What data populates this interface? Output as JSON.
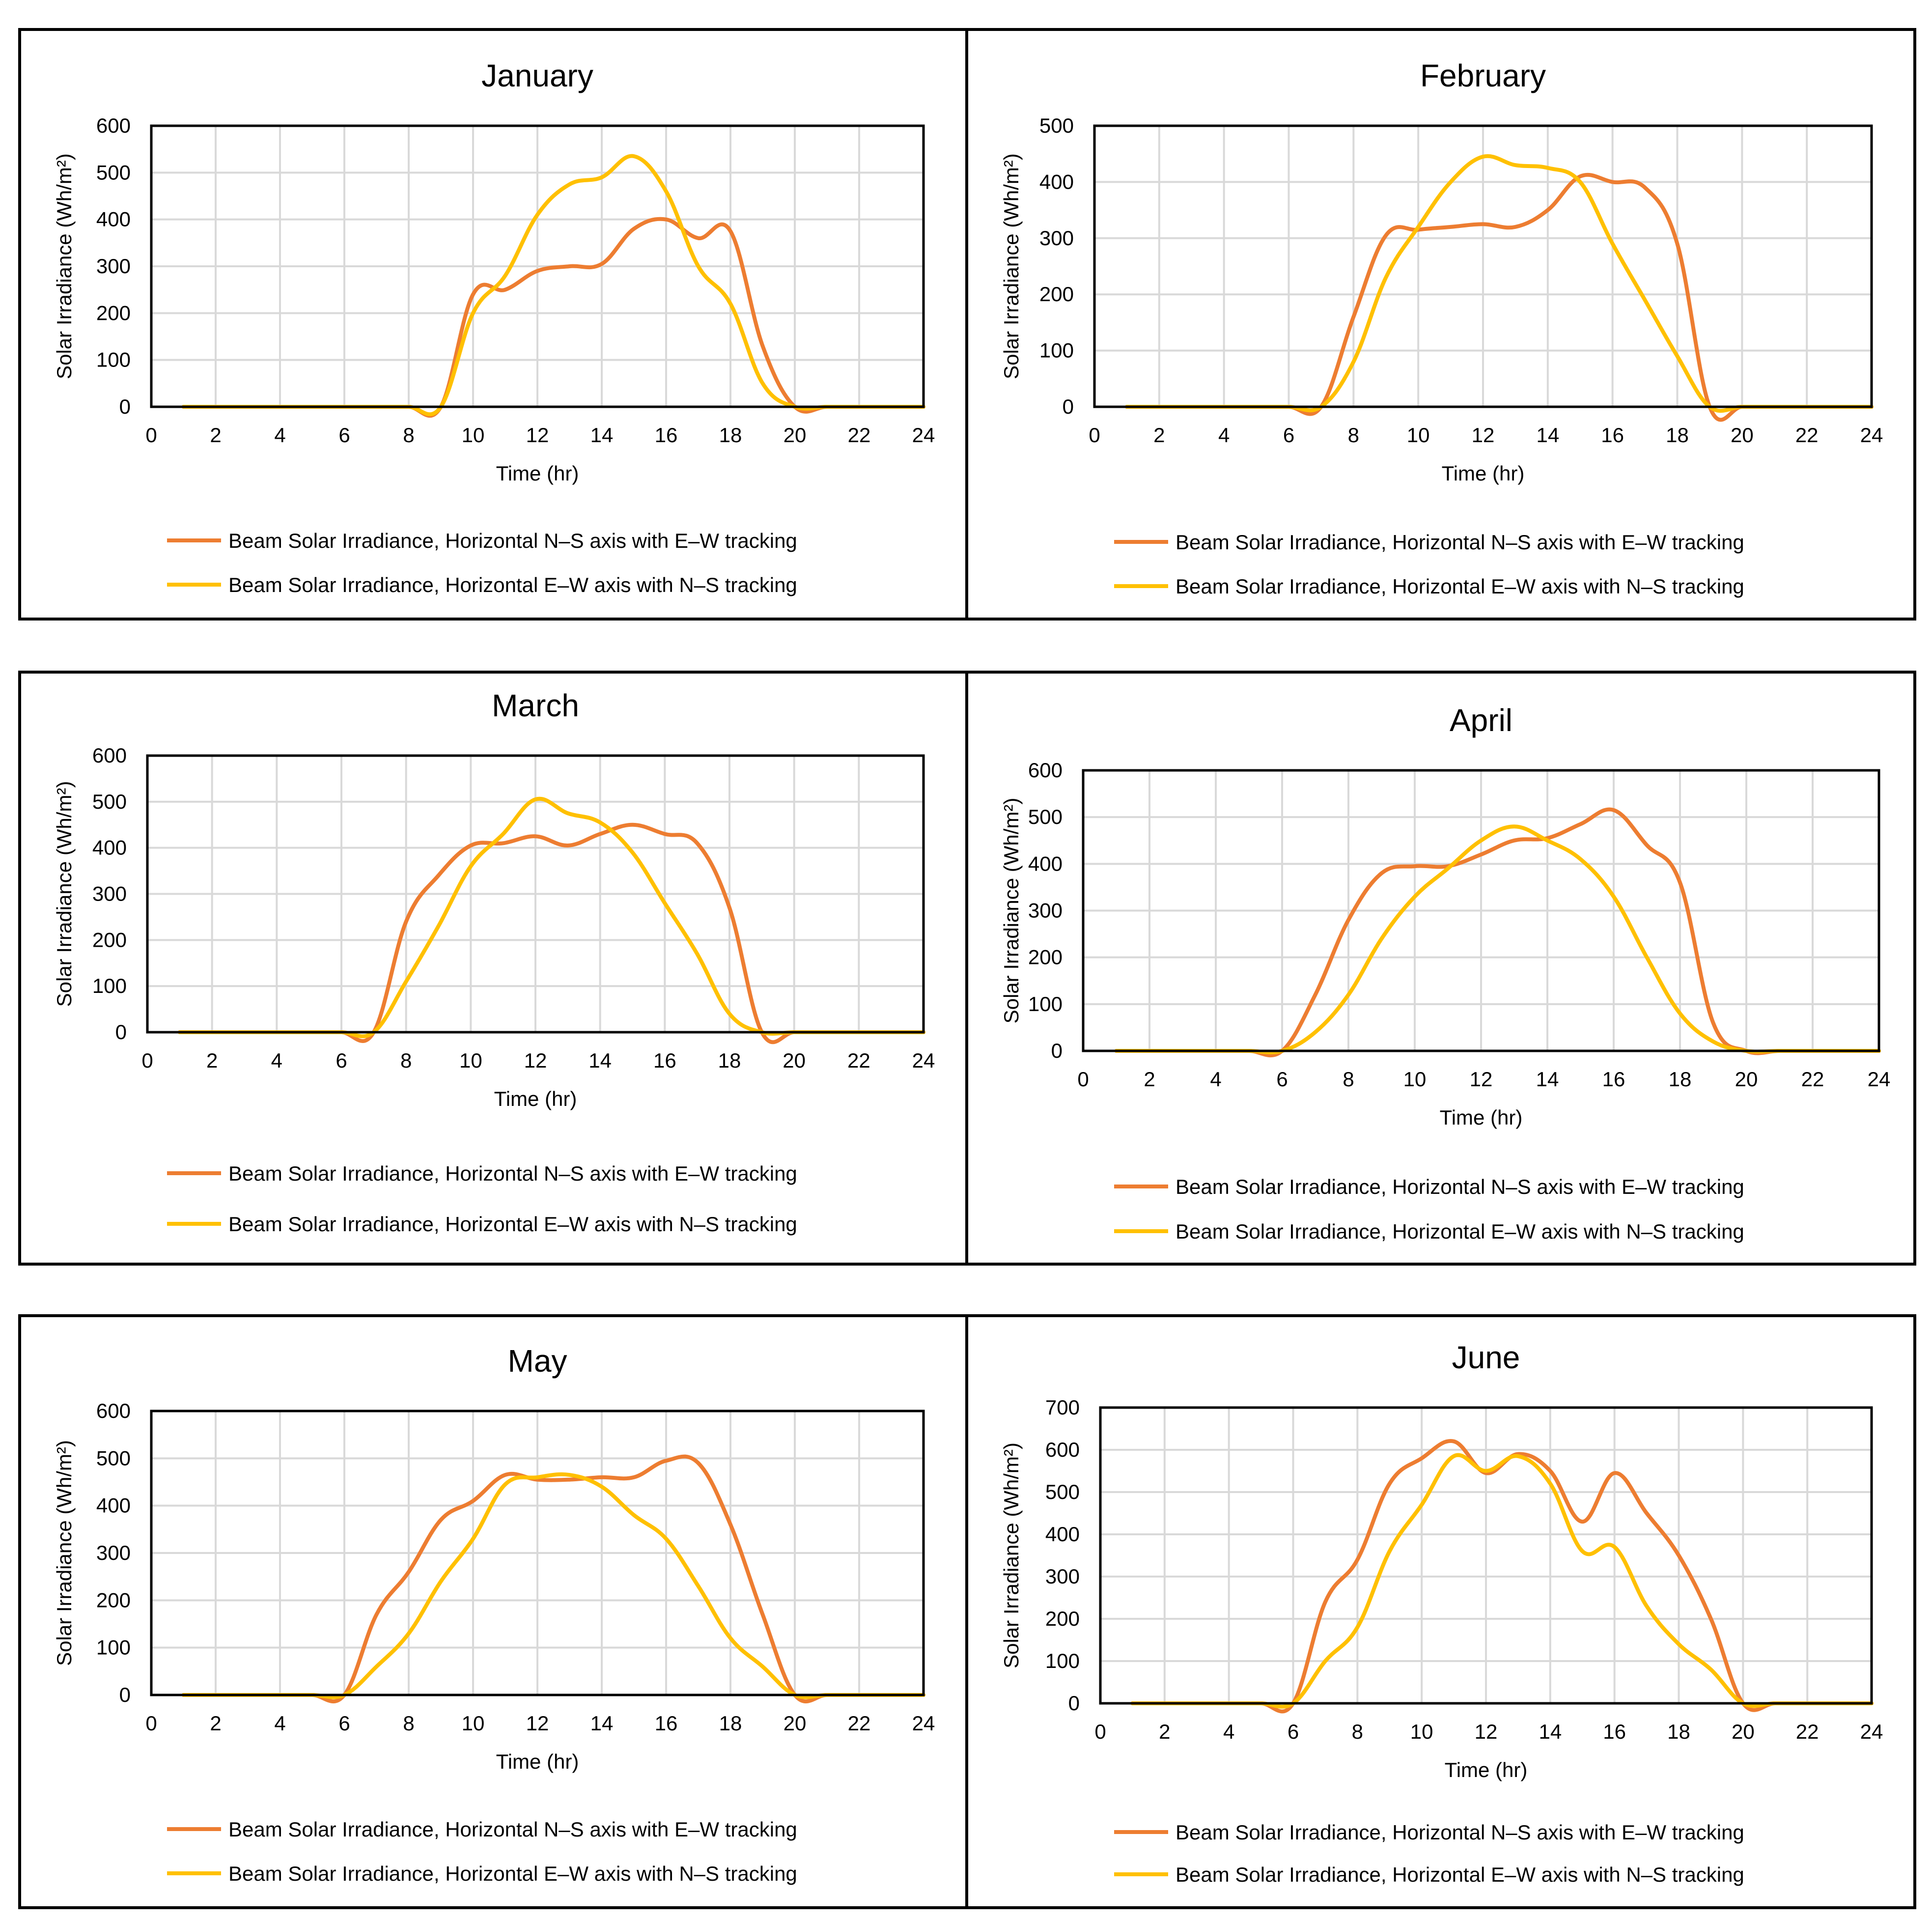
{
  "colors": {
    "ns_ew": "#ED7D31",
    "ew_ns": "#FFC000",
    "grid": "#D9D9D9",
    "frame": "#000000"
  },
  "chart_data": [
    {
      "type": "line",
      "title": "January",
      "xlabel": "Time (hr)",
      "ylabel": "Solar Irradiance (Wh/m²)",
      "xlim": [
        0,
        24
      ],
      "ylim": [
        0,
        600
      ],
      "xticks": [
        0,
        2,
        4,
        6,
        8,
        10,
        12,
        14,
        16,
        18,
        20,
        22,
        24
      ],
      "yticks": [
        0,
        100,
        200,
        300,
        400,
        500,
        600
      ],
      "series": [
        {
          "name": "Beam Solar Irradiance, Horizontal N–S axis with E–W tracking",
          "color_key": "ns_ew",
          "x": [
            1,
            2,
            3,
            4,
            5,
            6,
            7,
            8,
            9,
            10,
            11,
            12,
            13,
            14,
            15,
            16,
            17,
            18,
            19,
            20,
            21,
            22,
            23,
            24
          ],
          "y": [
            0,
            0,
            0,
            0,
            0,
            0,
            0,
            0,
            0,
            240,
            250,
            290,
            300,
            305,
            380,
            400,
            360,
            375,
            130,
            0,
            0,
            0,
            0,
            0
          ]
        },
        {
          "name": "Beam Solar Irradiance, Horizontal E–W axis with N–S tracking",
          "color_key": "ew_ns",
          "x": [
            1,
            2,
            3,
            4,
            5,
            6,
            7,
            8,
            9,
            10,
            11,
            12,
            13,
            14,
            15,
            16,
            17,
            18,
            19,
            20,
            21,
            22,
            23,
            24
          ],
          "y": [
            0,
            0,
            0,
            0,
            0,
            0,
            0,
            0,
            0,
            200,
            280,
            410,
            475,
            490,
            535,
            460,
            300,
            220,
            50,
            0,
            0,
            0,
            0,
            0
          ]
        }
      ]
    },
    {
      "type": "line",
      "title": "February",
      "xlabel": "Time (hr)",
      "ylabel": "Solar Irradiance (Wh/m²)",
      "xlim": [
        0,
        24
      ],
      "ylim": [
        0,
        500
      ],
      "xticks": [
        0,
        2,
        4,
        6,
        8,
        10,
        12,
        14,
        16,
        18,
        20,
        22,
        24
      ],
      "yticks": [
        0,
        100,
        200,
        300,
        400,
        500
      ],
      "series": [
        {
          "name": "Beam Solar Irradiance, Horizontal N–S axis with E–W tracking",
          "color_key": "ns_ew",
          "x": [
            1,
            2,
            3,
            4,
            5,
            6,
            7,
            8,
            9,
            10,
            11,
            12,
            13,
            14,
            15,
            16,
            17,
            18,
            19,
            20,
            21,
            22,
            23,
            24
          ],
          "y": [
            0,
            0,
            0,
            0,
            0,
            0,
            0,
            160,
            305,
            315,
            320,
            325,
            320,
            350,
            410,
            400,
            390,
            290,
            0,
            0,
            0,
            0,
            0,
            0
          ]
        },
        {
          "name": "Beam Solar Irradiance, Horizontal E–W axis with N–S tracking",
          "color_key": "ew_ns",
          "x": [
            1,
            2,
            3,
            4,
            5,
            6,
            7,
            8,
            9,
            10,
            11,
            12,
            13,
            14,
            15,
            16,
            17,
            18,
            19,
            20,
            21,
            22,
            23,
            24
          ],
          "y": [
            0,
            0,
            0,
            0,
            0,
            0,
            0,
            80,
            230,
            320,
            400,
            445,
            430,
            425,
            400,
            290,
            190,
            90,
            0,
            0,
            0,
            0,
            0,
            0
          ]
        }
      ]
    },
    {
      "type": "line",
      "title": "March",
      "xlabel": "Time (hr)",
      "ylabel": "Solar Irradiance (Wh/m²)",
      "xlim": [
        0,
        24
      ],
      "ylim": [
        0,
        600
      ],
      "xticks": [
        0,
        2,
        4,
        6,
        8,
        10,
        12,
        14,
        16,
        18,
        20,
        22,
        24
      ],
      "yticks": [
        0,
        100,
        200,
        300,
        400,
        500,
        600
      ],
      "series": [
        {
          "name": "Beam Solar Irradiance, Horizontal N–S axis with E–W tracking",
          "color_key": "ns_ew",
          "x": [
            1,
            2,
            3,
            4,
            5,
            6,
            7,
            8,
            9,
            10,
            11,
            12,
            13,
            14,
            15,
            16,
            17,
            18,
            19,
            20,
            21,
            22,
            23,
            24
          ],
          "y": [
            0,
            0,
            0,
            0,
            0,
            0,
            0,
            240,
            340,
            405,
            410,
            425,
            405,
            430,
            450,
            430,
            410,
            270,
            0,
            0,
            0,
            0,
            0,
            0
          ]
        },
        {
          "name": "Beam Solar Irradiance, Horizontal E–W axis with N–S tracking",
          "color_key": "ew_ns",
          "x": [
            1,
            2,
            3,
            4,
            5,
            6,
            7,
            8,
            9,
            10,
            11,
            12,
            13,
            14,
            15,
            16,
            17,
            18,
            19,
            20,
            21,
            22,
            23,
            24
          ],
          "y": [
            0,
            0,
            0,
            0,
            0,
            0,
            0,
            110,
            230,
            360,
            430,
            505,
            475,
            455,
            390,
            280,
            170,
            40,
            0,
            0,
            0,
            0,
            0,
            0
          ]
        }
      ]
    },
    {
      "type": "line",
      "title": "April",
      "xlabel": "Time (hr)",
      "ylabel": "Solar Irradiance (Wh/m²)",
      "xlim": [
        0,
        24
      ],
      "ylim": [
        0,
        600
      ],
      "xticks": [
        0,
        2,
        4,
        6,
        8,
        10,
        12,
        14,
        16,
        18,
        20,
        22,
        24
      ],
      "yticks": [
        0,
        100,
        200,
        300,
        400,
        500,
        600
      ],
      "series": [
        {
          "name": "Beam Solar Irradiance, Horizontal N–S axis with E–W tracking",
          "color_key": "ns_ew",
          "x": [
            1,
            2,
            3,
            4,
            5,
            6,
            7,
            8,
            9,
            10,
            11,
            12,
            13,
            14,
            15,
            16,
            17,
            18,
            19,
            20,
            21,
            22,
            23,
            24
          ],
          "y": [
            0,
            0,
            0,
            0,
            0,
            0,
            120,
            280,
            380,
            395,
            395,
            420,
            450,
            455,
            485,
            515,
            440,
            360,
            60,
            0,
            0,
            0,
            0,
            0
          ]
        },
        {
          "name": "Beam Solar Irradiance, Horizontal E–W axis with N–S tracking",
          "color_key": "ew_ns",
          "x": [
            1,
            2,
            3,
            4,
            5,
            6,
            7,
            8,
            9,
            10,
            11,
            12,
            13,
            14,
            15,
            16,
            17,
            18,
            19,
            20,
            21,
            22,
            23,
            24
          ],
          "y": [
            0,
            0,
            0,
            0,
            0,
            0,
            40,
            120,
            240,
            330,
            390,
            450,
            480,
            450,
            410,
            330,
            200,
            80,
            20,
            0,
            0,
            0,
            0,
            0
          ]
        }
      ]
    },
    {
      "type": "line",
      "title": "May",
      "xlabel": "Time (hr)",
      "ylabel": "Solar Irradiance (Wh/m²)",
      "xlim": [
        0,
        24
      ],
      "ylim": [
        0,
        600
      ],
      "xticks": [
        0,
        2,
        4,
        6,
        8,
        10,
        12,
        14,
        16,
        18,
        20,
        22,
        24
      ],
      "yticks": [
        0,
        100,
        200,
        300,
        400,
        500,
        600
      ],
      "series": [
        {
          "name": "Beam Solar Irradiance, Horizontal N–S axis with E–W tracking",
          "color_key": "ns_ew",
          "x": [
            1,
            2,
            3,
            4,
            5,
            6,
            7,
            8,
            9,
            10,
            11,
            12,
            13,
            14,
            15,
            16,
            17,
            18,
            19,
            20,
            21,
            22,
            23,
            24
          ],
          "y": [
            0,
            0,
            0,
            0,
            0,
            0,
            170,
            260,
            370,
            410,
            465,
            455,
            455,
            460,
            460,
            495,
            490,
            360,
            170,
            0,
            0,
            0,
            0,
            0
          ]
        },
        {
          "name": "Beam Solar Irradiance, Horizontal E–W axis with N–S tracking",
          "color_key": "ew_ns",
          "x": [
            1,
            2,
            3,
            4,
            5,
            6,
            7,
            8,
            9,
            10,
            11,
            12,
            13,
            14,
            15,
            16,
            17,
            18,
            19,
            20,
            21,
            22,
            23,
            24
          ],
          "y": [
            0,
            0,
            0,
            0,
            0,
            0,
            60,
            130,
            240,
            330,
            445,
            460,
            465,
            440,
            380,
            330,
            230,
            120,
            60,
            0,
            0,
            0,
            0,
            0
          ]
        }
      ]
    },
    {
      "type": "line",
      "title": "June",
      "xlabel": "Time (hr)",
      "ylabel": "Solar Irradiance (Wh/m²)",
      "xlim": [
        0,
        24
      ],
      "ylim": [
        0,
        700
      ],
      "xticks": [
        0,
        2,
        4,
        6,
        8,
        10,
        12,
        14,
        16,
        18,
        20,
        22,
        24
      ],
      "yticks": [
        0,
        100,
        200,
        300,
        400,
        500,
        600,
        700
      ],
      "series": [
        {
          "name": "Beam Solar Irradiance, Horizontal N–S axis with E–W tracking",
          "color_key": "ns_ew",
          "x": [
            1,
            2,
            3,
            4,
            5,
            6,
            7,
            8,
            9,
            10,
            11,
            12,
            13,
            14,
            15,
            16,
            17,
            18,
            19,
            20,
            21,
            22,
            23,
            24
          ],
          "y": [
            0,
            0,
            0,
            0,
            0,
            0,
            240,
            340,
            520,
            580,
            620,
            545,
            590,
            550,
            430,
            545,
            450,
            350,
            200,
            0,
            0,
            0,
            0,
            0
          ]
        },
        {
          "name": "Beam Solar Irradiance, Horizontal E–W axis with N–S tracking",
          "color_key": "ew_ns",
          "x": [
            1,
            2,
            3,
            4,
            5,
            6,
            7,
            8,
            9,
            10,
            11,
            12,
            13,
            14,
            15,
            16,
            17,
            18,
            19,
            20,
            21,
            22,
            23,
            24
          ],
          "y": [
            0,
            0,
            0,
            0,
            0,
            0,
            100,
            180,
            360,
            470,
            585,
            550,
            585,
            520,
            360,
            370,
            230,
            140,
            80,
            0,
            0,
            0,
            0,
            0
          ]
        }
      ]
    }
  ]
}
